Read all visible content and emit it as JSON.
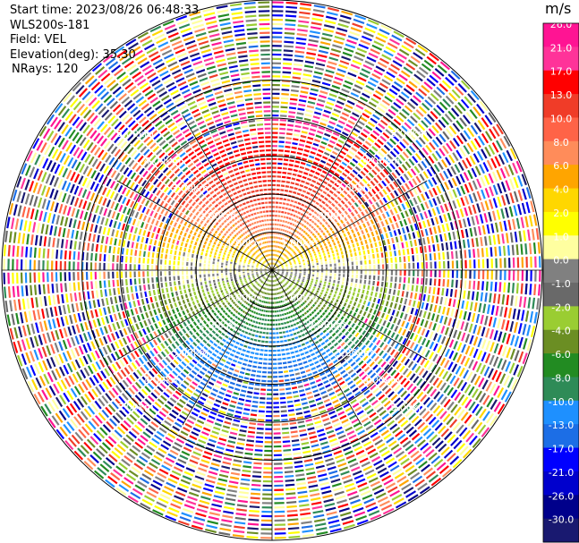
{
  "header": {
    "start_time": "Start time: 2023/08/26 06:48:33",
    "instrument": "WLS200s-181",
    "field": "Field: VEL",
    "elevation": "Elevation(deg): 35.30",
    "nrays": "NRays: 120"
  },
  "chart_data": {
    "type": "heatmap",
    "projection": "polar-ppi",
    "field": "VEL",
    "n_rays": 120,
    "unit": "m/s",
    "range_rings_km": [
      1.0,
      2.0,
      3.0,
      4.0,
      5.0
    ],
    "range_ring_labels": [
      "1.00km",
      "2.00km",
      "3.00km",
      "4.00km",
      "5.00km"
    ],
    "colorbar": {
      "unit": "m/s",
      "ticks": [
        "26.0",
        "21.0",
        "17.0",
        "13.0",
        "10.0",
        "8.0",
        "6.0",
        "4.0",
        "2.0",
        "1.0",
        "0.0",
        "-1.0",
        "-2.0",
        "-4.0",
        "-6.0",
        "-8.0",
        "-10.0",
        "-13.0",
        "-17.0",
        "-21.0",
        "-26.0",
        "-30.0"
      ],
      "colors": [
        "#ff1493",
        "#ff3399",
        "#ff0000",
        "#f03c28",
        "#ff6347",
        "#ff8c5a",
        "#ffa500",
        "#ffd700",
        "#ffff00",
        "#ffffa0",
        "#808080",
        "#696969",
        "#9acd32",
        "#6b8e23",
        "#228b22",
        "#2e8b57",
        "#1e90ff",
        "#1c6ee6",
        "#0000ff",
        "#0000cd",
        "#00008b",
        "#191970"
      ]
    },
    "grid": true
  }
}
